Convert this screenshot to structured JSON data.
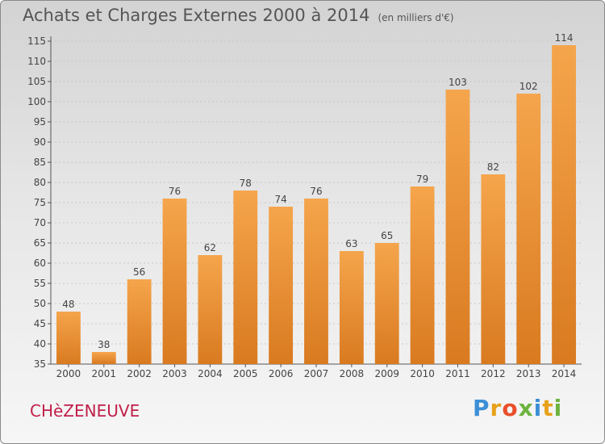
{
  "header": {
    "title": "Achats et Charges Externes 2000 à 2014",
    "unit": "(en milliers d'€)"
  },
  "footer": {
    "commune": "CHèZENEUVE",
    "logo": [
      "P",
      "r",
      "o",
      "x",
      "i",
      "t",
      "i"
    ]
  },
  "colors": {
    "bar_top": "#f5a54c",
    "bar_bottom": "#d97a20",
    "commune": "#c0204a",
    "axis_text": "#444444"
  },
  "chart_data": {
    "type": "bar",
    "title": "Achats et Charges Externes 2000 à 2014",
    "subtitle": "(en milliers d'€)",
    "categories": [
      "2000",
      "2001",
      "2002",
      "2003",
      "2004",
      "2005",
      "2006",
      "2007",
      "2008",
      "2009",
      "2010",
      "2011",
      "2012",
      "2013",
      "2014"
    ],
    "values": [
      48,
      38,
      56,
      76,
      62,
      78,
      74,
      76,
      63,
      65,
      79,
      103,
      82,
      102,
      114
    ],
    "ylim": [
      35,
      115
    ],
    "yticks": [
      35,
      40,
      45,
      50,
      55,
      60,
      65,
      70,
      75,
      80,
      85,
      90,
      95,
      100,
      105,
      110,
      115
    ],
    "grid": true,
    "data_labels": true
  }
}
